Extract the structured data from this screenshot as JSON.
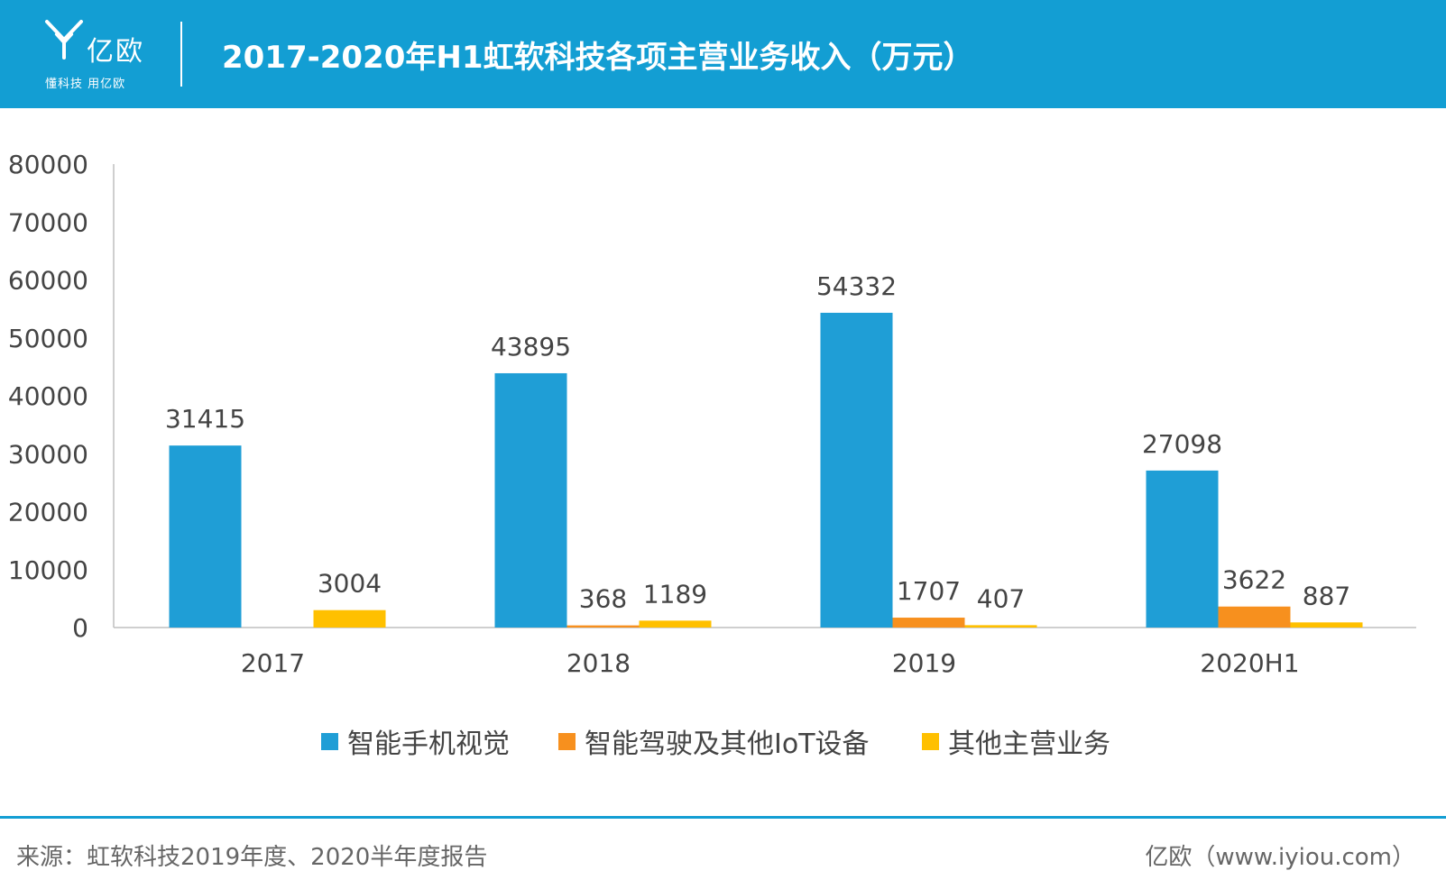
{
  "header": {
    "brand_name": "亿欧",
    "brand_slogan": "懂科技 用亿欧",
    "title": "2017-2020年H1虹软科技各项主营业务收入（万元）",
    "background_color": "#139ed3"
  },
  "chart_data": {
    "type": "bar",
    "title": "2017-2020年H1虹软科技各项主营业务收入（万元）",
    "categories": [
      "2017",
      "2018",
      "2019",
      "2020H1"
    ],
    "series": [
      {
        "name": "智能手机视觉",
        "color": "#1f9ed6",
        "values": [
          31415,
          43895,
          54332,
          27098
        ]
      },
      {
        "name": "智能驾驶及其他IoT设备",
        "color": "#f7901e",
        "values": [
          null,
          368,
          1707,
          3622
        ]
      },
      {
        "name": "其他主营业务",
        "color": "#ffc000",
        "values": [
          3004,
          1189,
          407,
          887
        ]
      }
    ],
    "ylim": [
      0,
      80000
    ],
    "yticks": [
      "0",
      "10000",
      "20000",
      "30000",
      "40000",
      "50000",
      "60000",
      "70000",
      "80000"
    ],
    "grid": false,
    "legend_position": "bottom",
    "data_labels": true
  },
  "footer": {
    "source": "来源：虹软科技2019年度、2020半年度报告",
    "site": "亿欧（www.iyiou.com）"
  }
}
